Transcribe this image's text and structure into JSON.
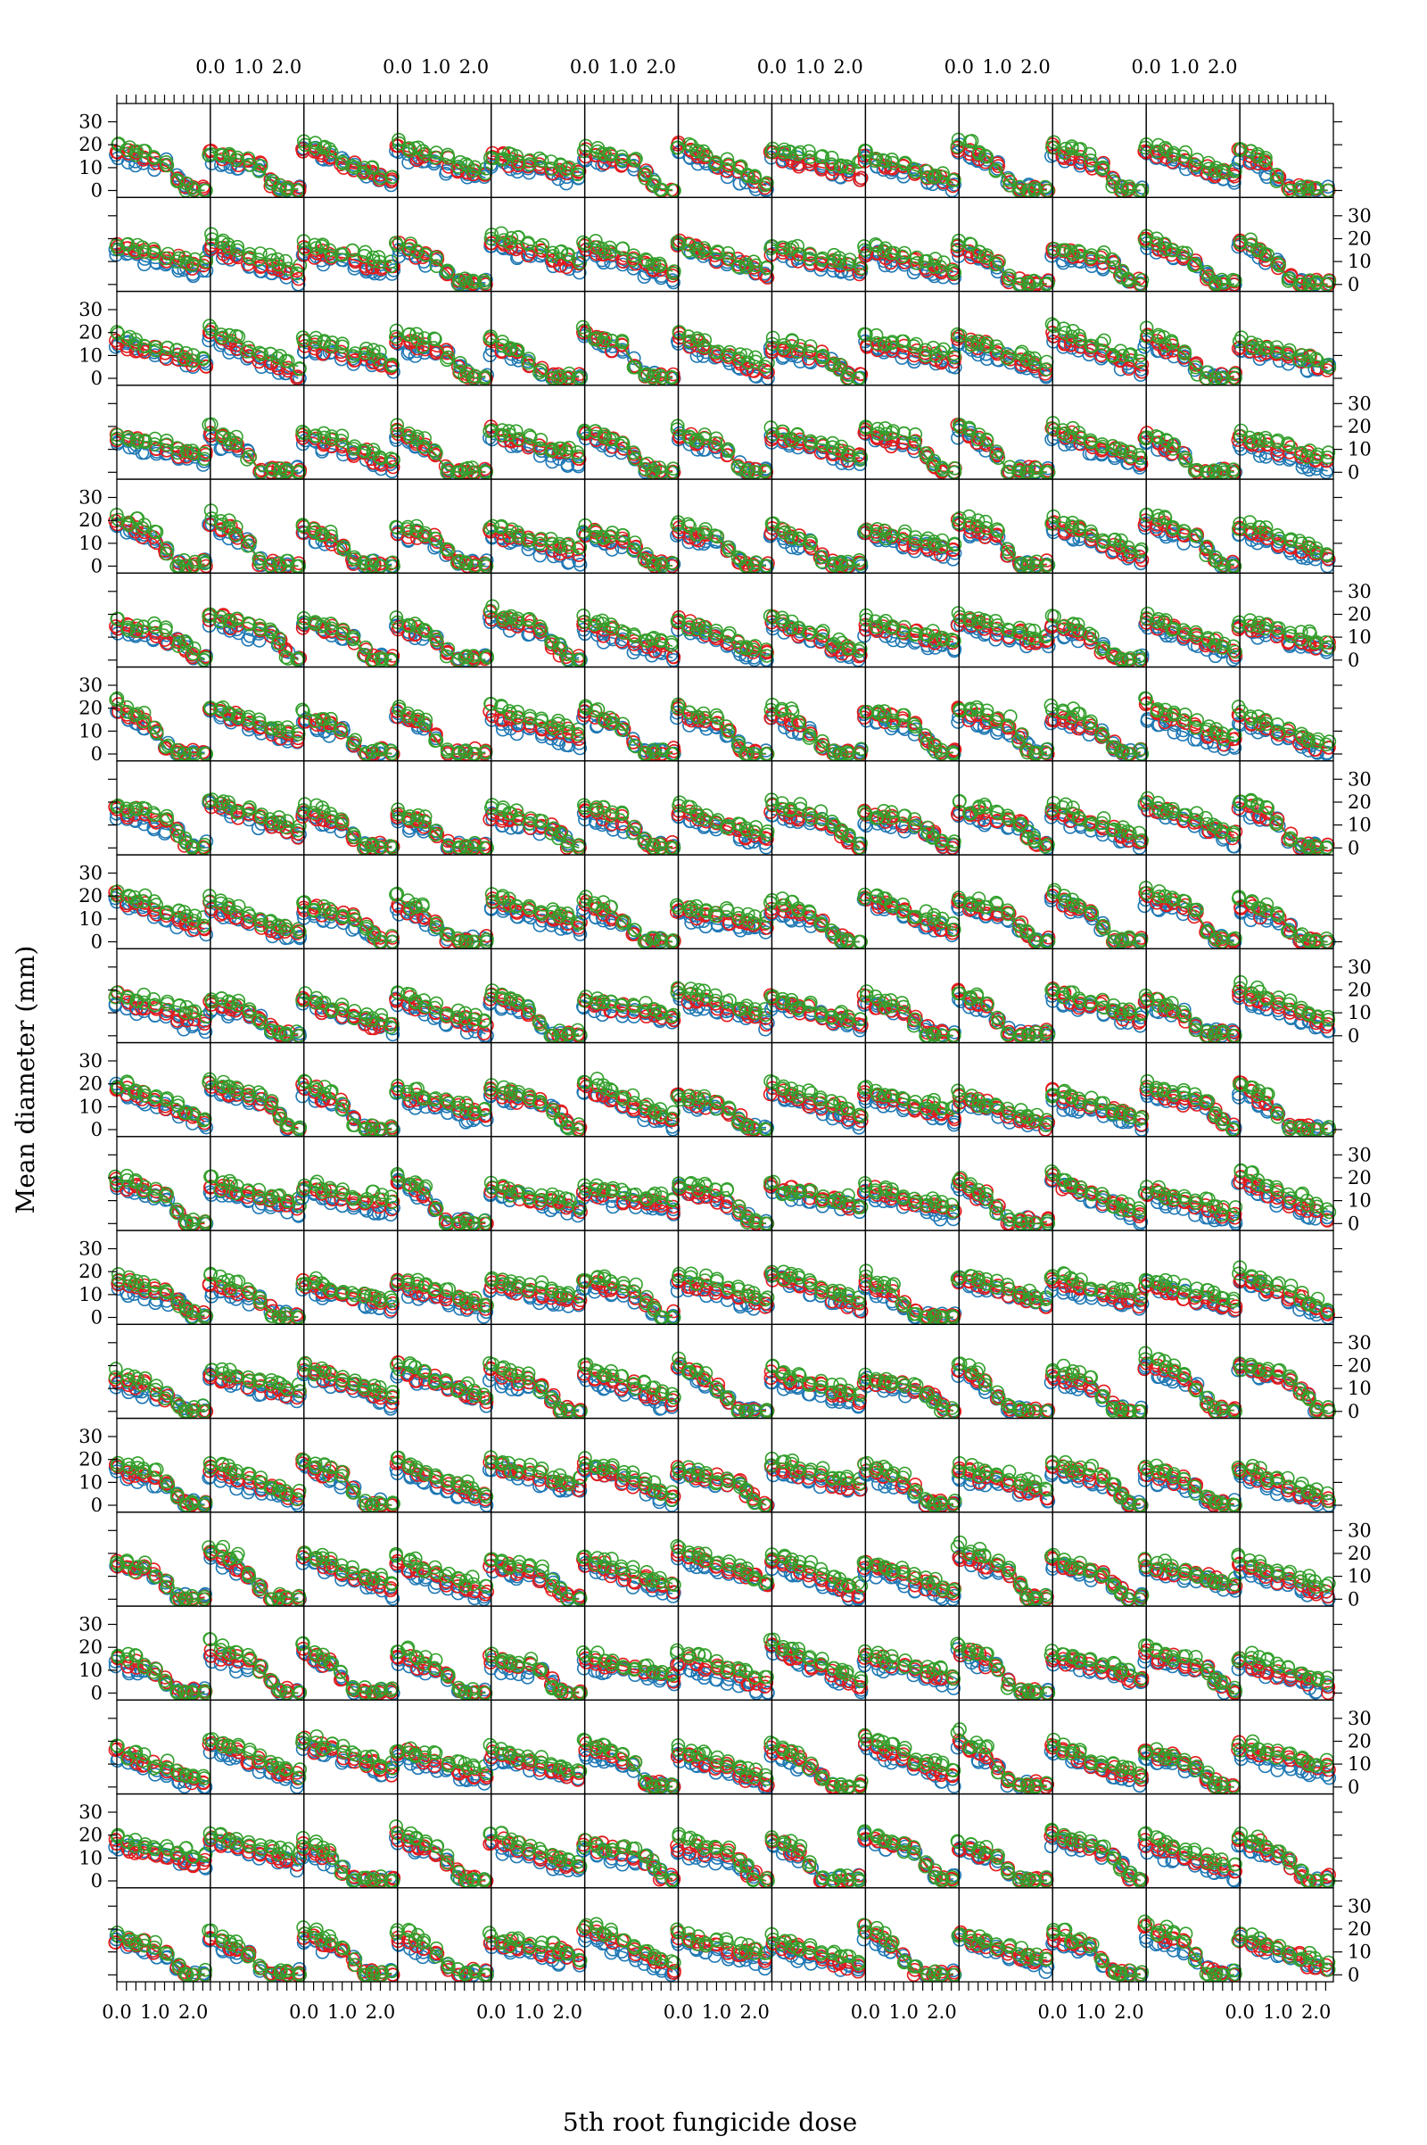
{
  "chart_data": {
    "type": "scatter",
    "layout": "trellis",
    "title": "",
    "xlabel": "5th root fungicide dose",
    "ylabel": "Mean diameter (mm)",
    "panel_columns": 13,
    "panel_rows": 20,
    "xlim": [
      0.0,
      2.45
    ],
    "ylim": [
      -3,
      38
    ],
    "x_tick_values": [
      0.0,
      0.25,
      0.5,
      0.75,
      1.0,
      1.25,
      1.5,
      1.75,
      2.0,
      2.25
    ],
    "x_tick_labels": [
      "0.0",
      "1.0",
      "2.0"
    ],
    "x_tick_label_values": [
      0.0,
      1.0,
      2.0
    ],
    "y_ticks": [
      0,
      10,
      20,
      30
    ],
    "y_tick_labels": [
      "0",
      "10",
      "20",
      "30"
    ],
    "series_colors": [
      "#1f78b4",
      "#e31a1c",
      "#33a02c"
    ],
    "series": [
      {
        "color": "#1f78b4"
      },
      {
        "color": "#e31a1c"
      },
      {
        "color": "#33a02c"
      }
    ],
    "dose_levels_5th_root": [
      0.0,
      0.3,
      0.5,
      0.7,
      1.0,
      1.3,
      1.6,
      1.8,
      2.0,
      2.3
    ],
    "panel_profile_note": "Each panel shows three colored series of mean diameter vs dose; values decline from roughly 15-20 mm at low dose toward 0-10 mm at high dose."
  }
}
